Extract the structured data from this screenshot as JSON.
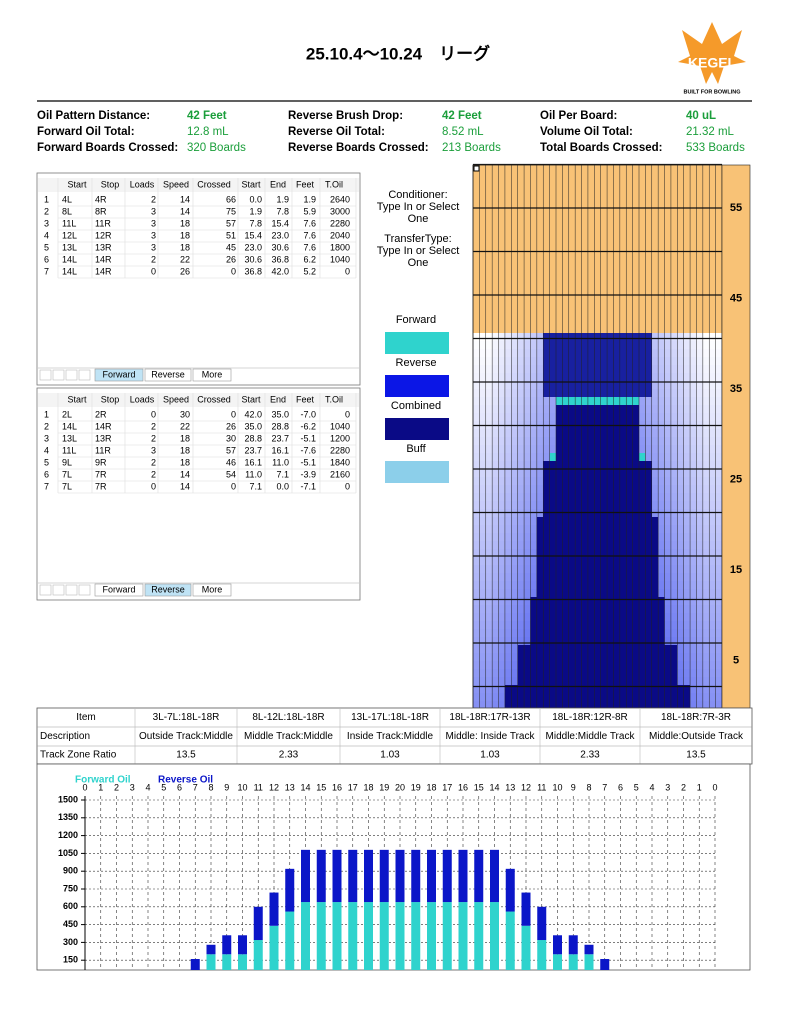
{
  "header": {
    "title": "25.10.4～10.24　リーグ",
    "logo": {
      "brand": "KEGEL",
      "tagline": "BUILT FOR BOWLING"
    }
  },
  "stats": [
    {
      "label": "Oil Pattern Distance:",
      "value": "42 Feet"
    },
    {
      "label": "Reverse Brush Drop:",
      "value": "42 Feet"
    },
    {
      "label": "Oil Per Board:",
      "value": "40 uL"
    },
    {
      "label": "Forward Oil Total:",
      "value": "12.8 mL"
    },
    {
      "label": "Reverse Oil Total:",
      "value": "8.52 mL"
    },
    {
      "label": "Volume Oil Total:",
      "value": "21.32 mL"
    },
    {
      "label": "Forward Boards Crossed:",
      "value": "320 Boards"
    },
    {
      "label": "Reverse Boards Crossed:",
      "value": "213 Boards"
    },
    {
      "label": "Total Boards Crossed:",
      "value": "533 Boards"
    }
  ],
  "forward_table": {
    "columns": [
      "Start",
      "Stop",
      "Loads",
      "Speed",
      "Crossed",
      "Start",
      "End",
      "Feet",
      "T.Oil"
    ],
    "rows": [
      [
        "1",
        "4L",
        "4R",
        "2",
        "14",
        "66",
        "0.0",
        "1.9",
        "1.9",
        "2640"
      ],
      [
        "2",
        "8L",
        "8R",
        "3",
        "14",
        "75",
        "1.9",
        "7.8",
        "5.9",
        "3000"
      ],
      [
        "3",
        "11L",
        "11R",
        "3",
        "18",
        "57",
        "7.8",
        "15.4",
        "7.6",
        "2280"
      ],
      [
        "4",
        "12L",
        "12R",
        "3",
        "18",
        "51",
        "15.4",
        "23.0",
        "7.6",
        "2040"
      ],
      [
        "5",
        "13L",
        "13R",
        "3",
        "18",
        "45",
        "23.0",
        "30.6",
        "7.6",
        "1800"
      ],
      [
        "6",
        "14L",
        "14R",
        "2",
        "22",
        "26",
        "30.6",
        "36.8",
        "6.2",
        "1040"
      ],
      [
        "7",
        "14L",
        "14R",
        "0",
        "26",
        "0",
        "36.8",
        "42.0",
        "5.2",
        "0"
      ]
    ],
    "tabs": [
      "Forward",
      "Reverse",
      "More"
    ],
    "active_tab": 0
  },
  "reverse_table": {
    "columns": [
      "Start",
      "Stop",
      "Loads",
      "Speed",
      "Crossed",
      "Start",
      "End",
      "Feet",
      "T.Oil"
    ],
    "rows": [
      [
        "1",
        "2L",
        "2R",
        "0",
        "30",
        "0",
        "42.0",
        "35.0",
        "-7.0",
        "0"
      ],
      [
        "2",
        "14L",
        "14R",
        "2",
        "22",
        "26",
        "35.0",
        "28.8",
        "-6.2",
        "1040"
      ],
      [
        "3",
        "13L",
        "13R",
        "2",
        "18",
        "30",
        "28.8",
        "23.7",
        "-5.1",
        "1200"
      ],
      [
        "4",
        "11L",
        "11R",
        "3",
        "18",
        "57",
        "23.7",
        "16.1",
        "-7.6",
        "2280"
      ],
      [
        "5",
        "9L",
        "9R",
        "2",
        "18",
        "46",
        "16.1",
        "11.0",
        "-5.1",
        "1840"
      ],
      [
        "6",
        "7L",
        "7R",
        "2",
        "14",
        "54",
        "11.0",
        "7.1",
        "-3.9",
        "2160"
      ],
      [
        "7",
        "7L",
        "7R",
        "0",
        "14",
        "0",
        "7.1",
        "0.0",
        "-7.1",
        "0"
      ]
    ],
    "tabs": [
      "Forward",
      "Reverse",
      "More"
    ],
    "active_tab": 1
  },
  "settings": {
    "conditioner": [
      "Conditioner:",
      "Type In or Select",
      "One"
    ],
    "transfer": [
      "TransferType:",
      "Type In or Select",
      "One"
    ]
  },
  "legend": [
    {
      "label": "Forward",
      "color": "#2fd3cd"
    },
    {
      "label": "Reverse",
      "color": "#0b16e6"
    },
    {
      "label": "Combined",
      "color": "#0a0a86"
    },
    {
      "label": "Buff",
      "color": "#8ccfea"
    }
  ],
  "pattern": {
    "distance_labels": [
      55,
      45,
      35,
      25,
      15,
      5
    ]
  },
  "zone_table": {
    "rows": [
      [
        "Item",
        "3L-7L:18L-18R",
        "8L-12L:18L-18R",
        "13L-17L:18L-18R",
        "18L-18R:17R-13R",
        "18L-18R:12R-8R",
        "18L-18R:7R-3R"
      ],
      [
        "Description",
        "Outside Track:Middle",
        "Middle Track:Middle",
        "Inside Track:Middle",
        "Middle: Inside Track",
        "Middle:Middle Track",
        "Middle:Outside Track"
      ],
      [
        "Track Zone Ratio",
        "13.5",
        "2.33",
        "1.03",
        "1.03",
        "2.33",
        "13.5"
      ]
    ]
  },
  "chart_data": {
    "type": "stacked-bar",
    "categories": [
      0,
      1,
      2,
      3,
      4,
      5,
      6,
      7,
      8,
      9,
      10,
      11,
      12,
      13,
      14,
      15,
      16,
      17,
      18,
      19,
      20,
      19,
      18,
      17,
      16,
      15,
      14,
      13,
      12,
      11,
      10,
      9,
      8,
      7,
      6,
      5,
      4,
      3,
      2,
      1,
      0
    ],
    "series": [
      {
        "name": "Forward Oil",
        "color": "#2fd3cd",
        "values": [
          0,
          0,
          0,
          0,
          10,
          10,
          10,
          0,
          200,
          200,
          200,
          320,
          440,
          560,
          640,
          640,
          640,
          640,
          640,
          640,
          640,
          640,
          640,
          640,
          640,
          640,
          640,
          560,
          440,
          320,
          200,
          200,
          200,
          0,
          10,
          10,
          10,
          0,
          0,
          0,
          0
        ]
      },
      {
        "name": "Reverse Oil",
        "color": "#0b16c8",
        "values": [
          0,
          0,
          0,
          0,
          0,
          0,
          0,
          160,
          80,
          160,
          160,
          280,
          280,
          360,
          440,
          440,
          440,
          440,
          440,
          440,
          440,
          440,
          440,
          440,
          440,
          440,
          440,
          360,
          280,
          280,
          160,
          160,
          80,
          160,
          0,
          0,
          0,
          0,
          0,
          0,
          0
        ]
      }
    ],
    "ylim": [
      0,
      1500
    ],
    "yticks": [
      150,
      300,
      450,
      600,
      750,
      900,
      1050,
      1200,
      1350,
      1500
    ],
    "grid": true
  }
}
